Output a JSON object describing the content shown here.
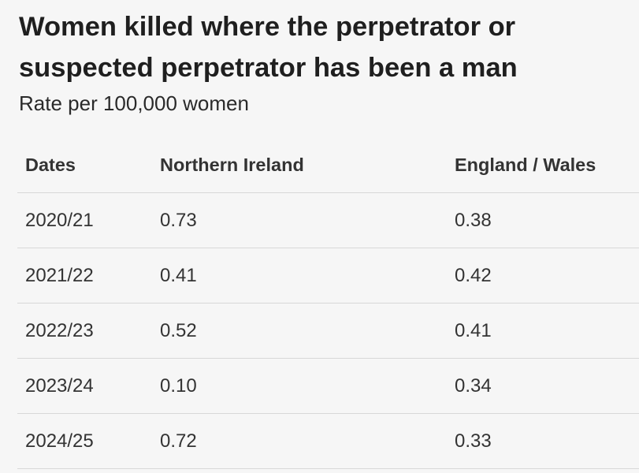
{
  "header": {
    "title": "Women killed where the perpetrator or suspected perpetrator has been a man",
    "subtitle": "Rate per 100,000 women"
  },
  "table": {
    "columns": [
      "Dates",
      "Northern Ireland",
      "England / Wales"
    ],
    "rows": [
      [
        "2020/21",
        "0.73",
        "0.38"
      ],
      [
        "2021/22",
        "0.41",
        "0.42"
      ],
      [
        "2022/23",
        "0.52",
        "0.41"
      ],
      [
        "2023/24",
        "0.10",
        "0.34"
      ],
      [
        "2024/25",
        "0.72",
        "0.33"
      ]
    ]
  }
}
